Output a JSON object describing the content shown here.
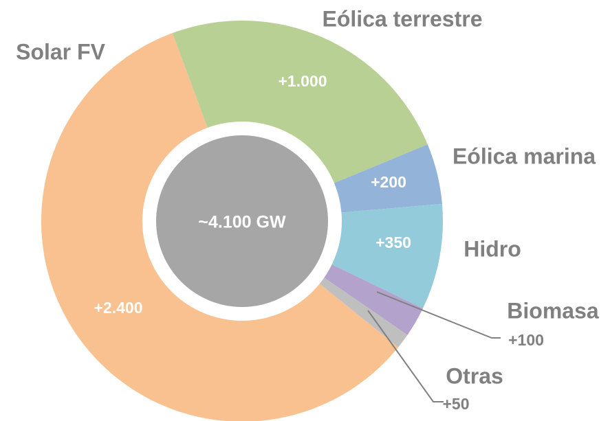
{
  "chart_data": {
    "type": "donut",
    "center_label": "~4.100 GW",
    "categories": [
      "Eólica terrestre",
      "Eólica marina",
      "Hidro",
      "Biomasa",
      "Otras",
      "Solar FV"
    ],
    "values": [
      1000,
      200,
      350,
      100,
      50,
      2400
    ],
    "value_labels": [
      "+1.000",
      "+200",
      "+350",
      "+100",
      "+50",
      "+2.400"
    ],
    "colors": [
      "#b9d094",
      "#94b3d9",
      "#93cbdb",
      "#b3a2cc",
      "#bfbfbf",
      "#f8c18f"
    ]
  }
}
